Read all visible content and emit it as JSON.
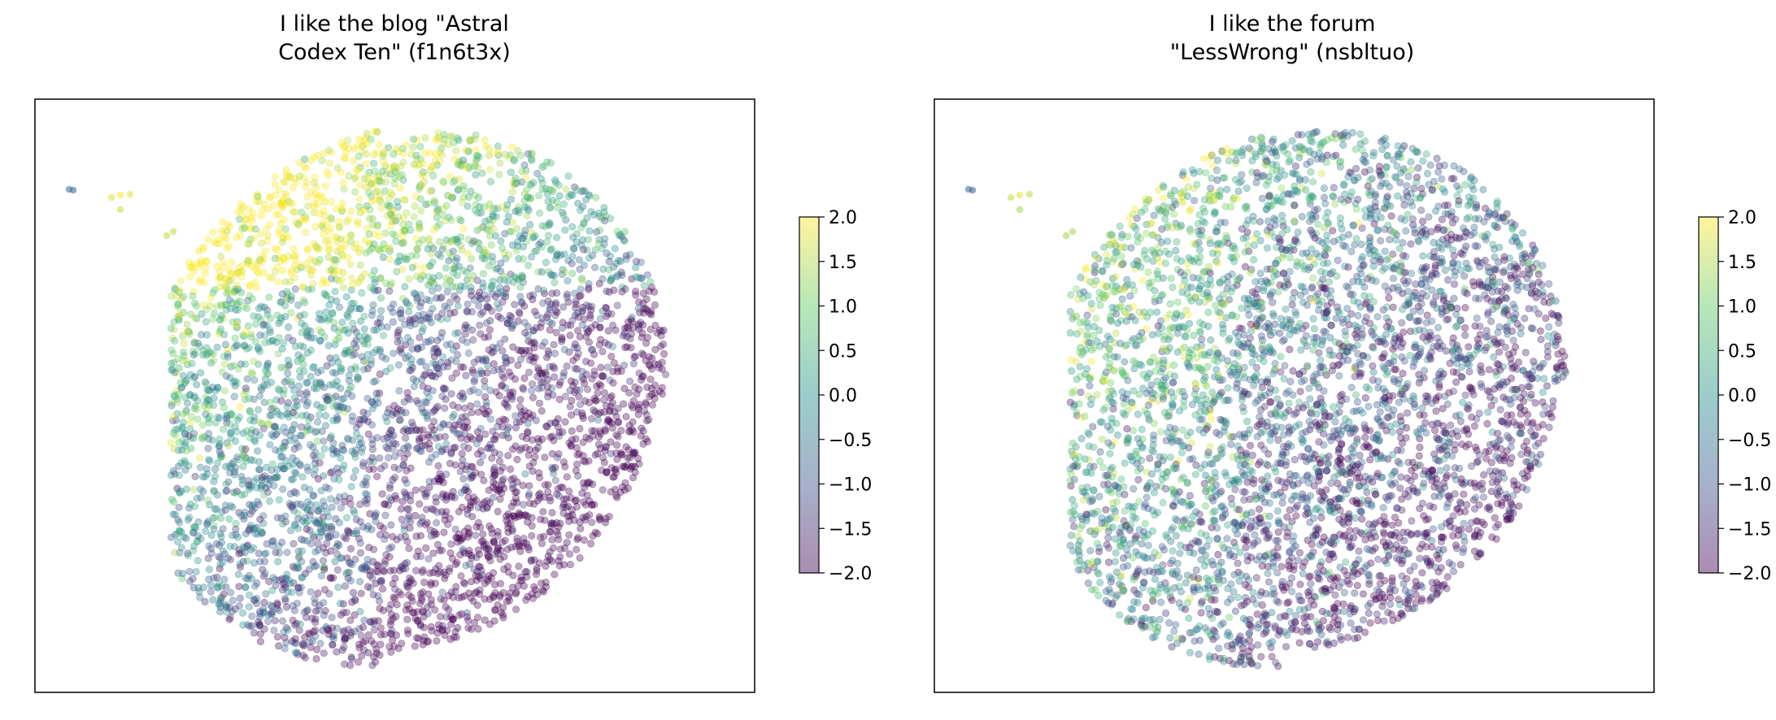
{
  "chart_data": [
    {
      "type": "scatter",
      "title": "I like the blog \"Astral\nCodex Ten\" (f1n6t3x)",
      "colormap": "viridis",
      "marker_alpha": 0.35,
      "axes_ticks_visible": false,
      "grid": false,
      "colorbar": {
        "range": [
          -2.0,
          2.0
        ],
        "ticks": [
          2.0,
          1.5,
          1.0,
          0.5,
          0.0,
          -0.5,
          -1.0,
          -1.5,
          -2.0
        ],
        "tick_labels": [
          "2.0",
          "1.5",
          "1.0",
          "0.5",
          "0.0",
          "−0.5",
          "−1.0",
          "−1.5",
          "−2.0"
        ],
        "placement": "right"
      },
      "color_trend": "high values (yellow) concentrated in upper-left of the point cloud; low values (dark blue) in lower and right regions"
    },
    {
      "type": "scatter",
      "title": "I like the forum\n\"LessWrong\" (nsbltuo)",
      "colormap": "viridis",
      "marker_alpha": 0.35,
      "axes_ticks_visible": false,
      "grid": false,
      "colorbar": {
        "range": [
          -2.0,
          2.0
        ],
        "ticks": [
          2.0,
          1.5,
          1.0,
          0.5,
          0.0,
          -0.5,
          -1.0,
          -1.5,
          -2.0
        ],
        "tick_labels": [
          "2.0",
          "1.5",
          "1.0",
          "0.5",
          "0.0",
          "−0.5",
          "−1.0",
          "−1.5",
          "−2.0"
        ],
        "placement": "right"
      },
      "color_trend": "moderately high values (yellow-green) toward upper-left; mostly mixed green/blue elsewhere, darker toward bottom and right"
    }
  ]
}
